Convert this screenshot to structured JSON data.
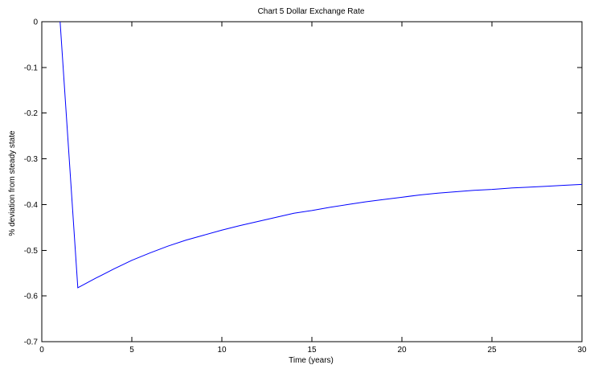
{
  "chart_data": {
    "type": "line",
    "title": "Chart 5 Dollar Exchange Rate",
    "xlabel": "Time (years)",
    "ylabel": "% deviation from steady state",
    "xlim": [
      0,
      30
    ],
    "ylim": [
      -0.7,
      0
    ],
    "xticks": [
      0,
      5,
      10,
      15,
      20,
      25,
      30
    ],
    "yticks": [
      0,
      -0.1,
      -0.2,
      -0.3,
      -0.4,
      -0.5,
      -0.6,
      -0.7
    ],
    "xtick_labels": [
      "0",
      "5",
      "10",
      "15",
      "20",
      "25",
      "30"
    ],
    "ytick_labels": [
      "0",
      "-0.1",
      "-0.2",
      "-0.3",
      "-0.4",
      "-0.5",
      "-0.6",
      "-0.7"
    ],
    "grid": false,
    "legend": null,
    "series": [
      {
        "color": "#0000ff",
        "x": [
          1,
          2,
          3,
          4,
          5,
          6,
          7,
          8,
          9,
          10,
          11,
          12,
          13,
          14,
          15,
          16,
          17,
          18,
          19,
          20,
          21,
          22,
          23,
          24,
          25,
          26,
          27,
          28,
          29,
          30
        ],
        "y": [
          0.01,
          -0.582,
          -0.561,
          -0.541,
          -0.522,
          -0.506,
          -0.491,
          -0.478,
          -0.467,
          -0.456,
          -0.446,
          -0.437,
          -0.428,
          -0.419,
          -0.413,
          -0.406,
          -0.4,
          -0.394,
          -0.389,
          -0.384,
          -0.379,
          -0.375,
          -0.372,
          -0.369,
          -0.367,
          -0.364,
          -0.362,
          -0.36,
          -0.358,
          -0.356
        ]
      }
    ]
  }
}
